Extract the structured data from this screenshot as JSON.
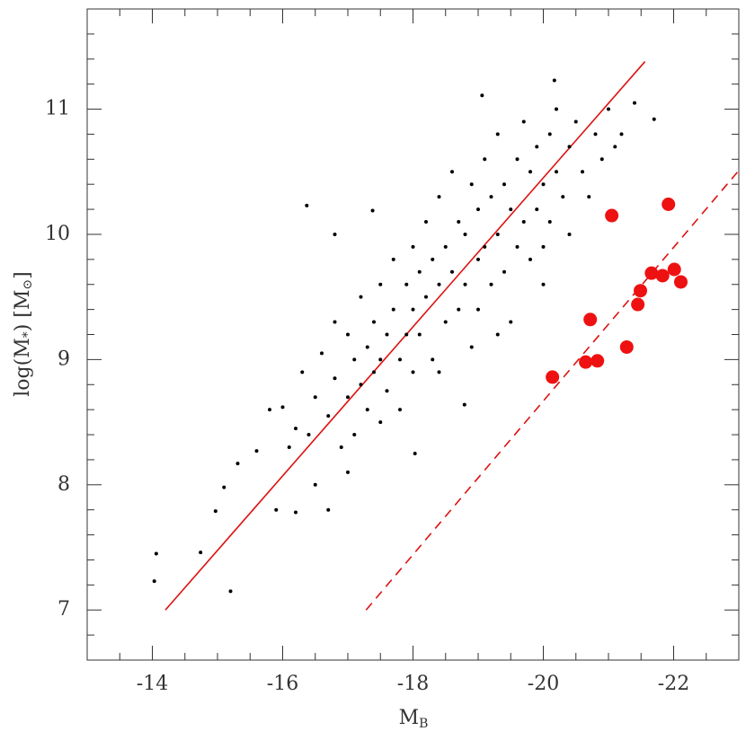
{
  "chart_data": {
    "type": "scatter",
    "xlabel": [
      "M",
      "B"
    ],
    "ylabel": [
      "log(M",
      "*",
      ") [M",
      "⊙",
      "]"
    ],
    "xlim": [
      -13,
      -23
    ],
    "ylim": [
      6.6,
      11.8
    ],
    "xticks": [
      -14,
      -16,
      -18,
      -20,
      -22
    ],
    "yticks": [
      7,
      8,
      9,
      10,
      11
    ],
    "xminor": [
      -13,
      -13.5,
      -14.5,
      -15,
      -15.5,
      -16.5,
      -17,
      -17.5,
      -18.5,
      -19,
      -19.5,
      -20.5,
      -21,
      -21.5,
      -22.5
    ],
    "yminor": [
      6.8,
      7.2,
      7.4,
      7.6,
      7.8,
      8.2,
      8.4,
      8.6,
      8.8,
      9.2,
      9.4,
      9.6,
      9.8,
      10.2,
      10.4,
      10.6,
      10.8,
      11.2,
      11.4,
      11.6
    ],
    "series": [
      {
        "color": "#000000",
        "size": 2,
        "x": [
          -14.06,
          -14.03,
          -14.74,
          -15.2,
          -14.97,
          -15.1,
          -15.31,
          -16.37,
          -17.38,
          -16.8,
          -18.03,
          -18.79,
          -21.7,
          -20.17,
          -19.06,
          -15.6,
          -15.8,
          -15.9,
          -16.0,
          -16.1,
          -16.2,
          -16.2,
          -16.3,
          -16.4,
          -16.5,
          -16.5,
          -16.6,
          -16.7,
          -16.7,
          -16.8,
          -16.8,
          -16.9,
          -17.0,
          -17.0,
          -17.1,
          -17.1,
          -17.2,
          -17.2,
          -17.3,
          -17.3,
          -17.4,
          -17.4,
          -17.5,
          -17.5,
          -17.5,
          -17.6,
          -17.6,
          -17.7,
          -17.7,
          -17.8,
          -17.8,
          -17.9,
          -17.9,
          -18.0,
          -18.0,
          -18.0,
          -18.1,
          -18.1,
          -18.2,
          -18.2,
          -18.3,
          -18.3,
          -18.4,
          -18.4,
          -18.5,
          -18.5,
          -18.6,
          -18.6,
          -18.7,
          -18.7,
          -18.8,
          -18.8,
          -18.9,
          -18.9,
          -19.0,
          -19.0,
          -19.0,
          -19.1,
          -19.1,
          -19.2,
          -19.2,
          -19.3,
          -19.3,
          -19.4,
          -19.4,
          -19.5,
          -19.5,
          -19.6,
          -19.6,
          -19.7,
          -19.7,
          -19.8,
          -19.8,
          -19.9,
          -19.9,
          -20.0,
          -20.0,
          -20.1,
          -20.1,
          -20.2,
          -20.2,
          -20.3,
          -20.4,
          -20.4,
          -20.5,
          -20.6,
          -20.7,
          -20.8,
          -20.9,
          -21.0,
          -21.1,
          -21.2,
          -21.4,
          -20.0,
          -19.3,
          -18.4,
          -17.0
        ],
        "values": [
          7.45,
          7.23,
          7.46,
          7.15,
          7.79,
          7.98,
          8.17,
          10.23,
          10.19,
          10.0,
          8.25,
          8.64,
          10.92,
          11.23,
          11.11,
          8.27,
          8.6,
          7.8,
          8.62,
          8.3,
          7.78,
          8.45,
          8.9,
          8.4,
          8.7,
          8.0,
          9.05,
          8.55,
          7.8,
          9.3,
          8.85,
          8.3,
          9.2,
          8.7,
          9.0,
          8.4,
          9.5,
          8.8,
          9.1,
          8.6,
          9.3,
          8.9,
          9.6,
          9.0,
          8.5,
          9.2,
          8.75,
          9.8,
          9.4,
          9.0,
          8.6,
          9.6,
          9.2,
          9.9,
          9.4,
          8.9,
          9.7,
          9.2,
          10.1,
          9.5,
          9.8,
          9.0,
          10.3,
          9.6,
          9.9,
          9.3,
          10.5,
          9.7,
          10.1,
          9.4,
          10.0,
          9.6,
          10.4,
          9.1,
          10.2,
          9.8,
          9.4,
          10.6,
          9.9,
          10.3,
          9.6,
          10.8,
          10.0,
          10.4,
          9.7,
          10.2,
          9.3,
          10.6,
          9.9,
          10.9,
          10.1,
          10.5,
          9.8,
          10.7,
          10.2,
          10.4,
          9.9,
          10.8,
          10.1,
          11.0,
          10.5,
          10.3,
          10.7,
          10.0,
          10.9,
          10.5,
          10.3,
          10.8,
          10.6,
          11.0,
          10.7,
          10.8,
          11.05,
          9.6,
          9.2,
          8.9,
          8.1
        ]
      },
      {
        "color": "#ee1111",
        "size": 7.5,
        "x": [
          -20.14,
          -20.65,
          -20.83,
          -20.72,
          -21.05,
          -21.28,
          -21.45,
          -21.49,
          -21.66,
          -21.83,
          -21.92,
          -22.01,
          -22.11
        ],
        "values": [
          8.86,
          8.98,
          8.99,
          9.32,
          10.15,
          9.1,
          9.44,
          9.55,
          9.69,
          9.67,
          10.24,
          9.72,
          9.62
        ]
      }
    ],
    "lines": [
      {
        "x": [
          -14.2,
          -21.56
        ],
        "values": [
          7.0,
          11.38
        ],
        "color": "#dd1111",
        "dashed": false
      },
      {
        "x": [
          -17.28,
          -23.0
        ],
        "values": [
          7.0,
          10.51
        ],
        "color": "#dd1111",
        "dashed": true
      }
    ]
  }
}
